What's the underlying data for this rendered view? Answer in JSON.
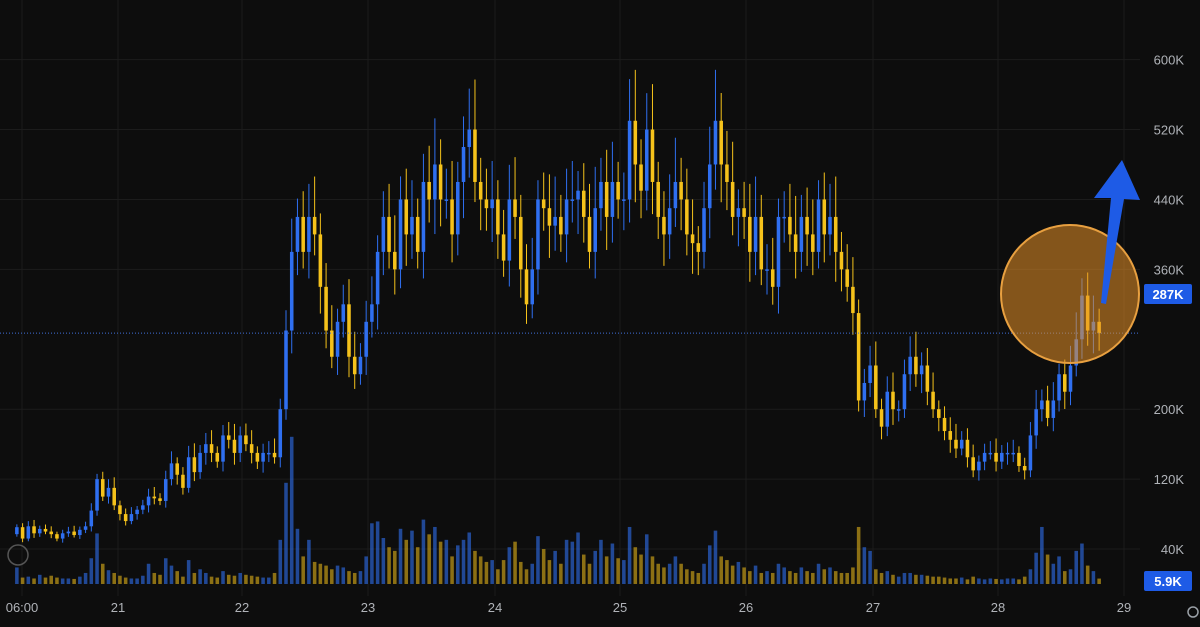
{
  "chart_data": {
    "type": "candlestick",
    "title": "",
    "xlabel": "",
    "ylabel": "",
    "x_ticks": [
      "06:00",
      "21",
      "22",
      "23",
      "24",
      "25",
      "26",
      "27",
      "28",
      "29"
    ],
    "y_ticks": [
      "600K",
      "520K",
      "440K",
      "360K",
      "200K",
      "120K",
      "40K"
    ],
    "ylim": [
      0,
      620000
    ],
    "grid": true,
    "last_price_label": "287K",
    "last_price": 287000,
    "last_volume_label": "5.9K",
    "colors": {
      "up": "#2f6ff0",
      "down": "#f5c21b",
      "background": "#0d0d0d",
      "grid": "#1c1c1c",
      "badge": "#1e5be6",
      "highlight_circle": "#e8a040",
      "arrow": "#1e5be6"
    },
    "annotations": [
      "orange-highlight-circle",
      "blue-up-arrow"
    ],
    "closes": [
      65000,
      52000,
      66000,
      58000,
      63000,
      60000,
      57000,
      52000,
      58000,
      60000,
      56000,
      62000,
      66000,
      84000,
      120000,
      100000,
      110000,
      90000,
      80000,
      72000,
      80000,
      85000,
      90000,
      100000,
      98000,
      95000,
      120000,
      138000,
      125000,
      110000,
      145000,
      128000,
      150000,
      160000,
      150000,
      140000,
      170000,
      165000,
      150000,
      170000,
      160000,
      150000,
      140000,
      150000,
      150000,
      145000,
      200000,
      290000,
      380000,
      420000,
      380000,
      420000,
      400000,
      340000,
      290000,
      260000,
      300000,
      320000,
      260000,
      240000,
      260000,
      300000,
      320000,
      380000,
      420000,
      380000,
      360000,
      440000,
      400000,
      420000,
      380000,
      460000,
      440000,
      480000,
      440000,
      440000,
      400000,
      460000,
      500000,
      520000,
      460000,
      440000,
      430000,
      440000,
      400000,
      370000,
      440000,
      420000,
      360000,
      320000,
      360000,
      440000,
      430000,
      410000,
      420000,
      400000,
      440000,
      440000,
      450000,
      420000,
      380000,
      430000,
      460000,
      420000,
      460000,
      440000,
      440000,
      530000,
      480000,
      450000,
      520000,
      460000,
      420000,
      400000,
      430000,
      460000,
      440000,
      400000,
      390000,
      380000,
      430000,
      480000,
      530000,
      480000,
      460000,
      420000,
      430000,
      420000,
      380000,
      420000,
      360000,
      360000,
      340000,
      420000,
      420000,
      400000,
      380000,
      420000,
      400000,
      380000,
      440000,
      400000,
      420000,
      380000,
      360000,
      340000,
      310000,
      210000,
      230000,
      250000,
      200000,
      180000,
      220000,
      200000,
      200000,
      240000,
      260000,
      240000,
      250000,
      220000,
      200000,
      190000,
      175000,
      165000,
      155000,
      165000,
      145000,
      130000,
      140000,
      150000,
      150000,
      140000,
      150000,
      150000,
      150000,
      135000,
      130000,
      170000,
      200000,
      210000,
      190000,
      210000,
      240000,
      220000,
      250000,
      280000,
      330000,
      290000,
      300000,
      287000
    ],
    "volumes": [
      18000,
      7000,
      8000,
      6000,
      10000,
      7000,
      9000,
      7000,
      6000,
      6000,
      5500,
      8000,
      12000,
      28000,
      55000,
      22000,
      15000,
      12000,
      9000,
      7000,
      6000,
      6000,
      9000,
      22000,
      12000,
      10000,
      28000,
      20000,
      14000,
      8000,
      26000,
      12000,
      16000,
      12000,
      8000,
      7000,
      14000,
      10000,
      9000,
      12000,
      10000,
      9000,
      8000,
      7000,
      7000,
      12000,
      48000,
      110000,
      160000,
      60000,
      30000,
      48000,
      24000,
      22000,
      20000,
      16000,
      20000,
      18000,
      14000,
      12000,
      14000,
      30000,
      66000,
      68000,
      50000,
      40000,
      36000,
      60000,
      48000,
      58000,
      40000,
      70000,
      54000,
      62000,
      46000,
      48000,
      30000,
      42000,
      48000,
      56000,
      36000,
      30000,
      24000,
      26000,
      16000,
      26000,
      40000,
      46000,
      24000,
      16000,
      22000,
      52000,
      38000,
      26000,
      36000,
      22000,
      48000,
      46000,
      56000,
      32000,
      22000,
      36000,
      48000,
      30000,
      44000,
      28000,
      26000,
      62000,
      40000,
      32000,
      54000,
      30000,
      22000,
      18000,
      22000,
      30000,
      22000,
      16000,
      14000,
      12000,
      22000,
      42000,
      58000,
      30000,
      26000,
      20000,
      24000,
      18000,
      14000,
      20000,
      12000,
      14000,
      12000,
      22000,
      18000,
      14000,
      12000,
      18000,
      14000,
      12000,
      22000,
      16000,
      18000,
      14000,
      12000,
      12000,
      18000,
      62000,
      40000,
      36000,
      16000,
      12000,
      14000,
      10000,
      8000,
      12000,
      12000,
      10000,
      10000,
      9000,
      8000,
      8000,
      7000,
      6000,
      6000,
      7000,
      5000,
      8000,
      6000,
      5000,
      6000,
      5500,
      5000,
      6000,
      6000,
      5000,
      8000,
      16000,
      34000,
      62000,
      32000,
      22000,
      30000,
      14000,
      16000,
      36000,
      44000,
      20000,
      14000,
      5900
    ]
  }
}
